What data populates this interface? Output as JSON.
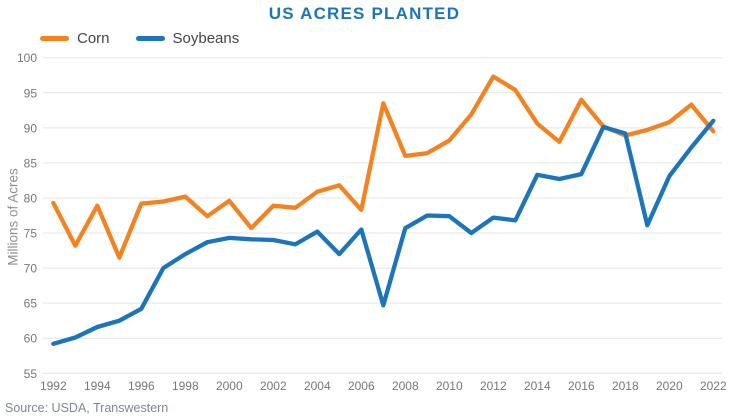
{
  "chart_data": {
    "type": "line",
    "title": "US ACRES PLANTED",
    "xlabel": "",
    "ylabel": "Millions of Acres",
    "source": "Source: USDA, Transwestern",
    "title_color": "#1B75BC",
    "grid": "horizontal-only",
    "gridline_color": "#E4E4E4",
    "legend_position": "top-left",
    "xlim": [
      1992,
      2022
    ],
    "ylim": [
      55,
      100
    ],
    "yticks": [
      55,
      60,
      65,
      70,
      75,
      80,
      85,
      90,
      95,
      100
    ],
    "xticks": [
      1992,
      1994,
      1996,
      1998,
      2000,
      2002,
      2004,
      2006,
      2008,
      2010,
      2012,
      2014,
      2016,
      2018,
      2020,
      2022
    ],
    "x": [
      1992,
      1993,
      1994,
      1995,
      1996,
      1997,
      1998,
      1999,
      2000,
      2001,
      2002,
      2003,
      2004,
      2005,
      2006,
      2007,
      2008,
      2009,
      2010,
      2011,
      2012,
      2013,
      2014,
      2015,
      2016,
      2017,
      2018,
      2019,
      2020,
      2021,
      2022
    ],
    "series": [
      {
        "name": "Corn",
        "color": "#F58220",
        "values": [
          79.3,
          73.2,
          78.9,
          71.5,
          79.2,
          79.5,
          80.2,
          77.4,
          79.6,
          75.7,
          78.9,
          78.6,
          80.9,
          81.8,
          78.3,
          93.5,
          86.0,
          86.4,
          88.2,
          91.9,
          97.3,
          95.4,
          90.6,
          88.0,
          94.0,
          90.2,
          88.9,
          89.7,
          90.8,
          93.3,
          89.5
        ]
      },
      {
        "name": "Soybeans",
        "color": "#1C75BC",
        "values": [
          59.2,
          60.1,
          61.6,
          62.5,
          64.2,
          70.0,
          72.0,
          73.7,
          74.3,
          74.1,
          74.0,
          73.4,
          75.2,
          72.0,
          75.5,
          64.7,
          75.7,
          77.5,
          77.4,
          75.0,
          77.2,
          76.8,
          83.3,
          82.7,
          83.4,
          90.1,
          89.2,
          76.1,
          83.1,
          87.2,
          91.0
        ]
      }
    ]
  }
}
